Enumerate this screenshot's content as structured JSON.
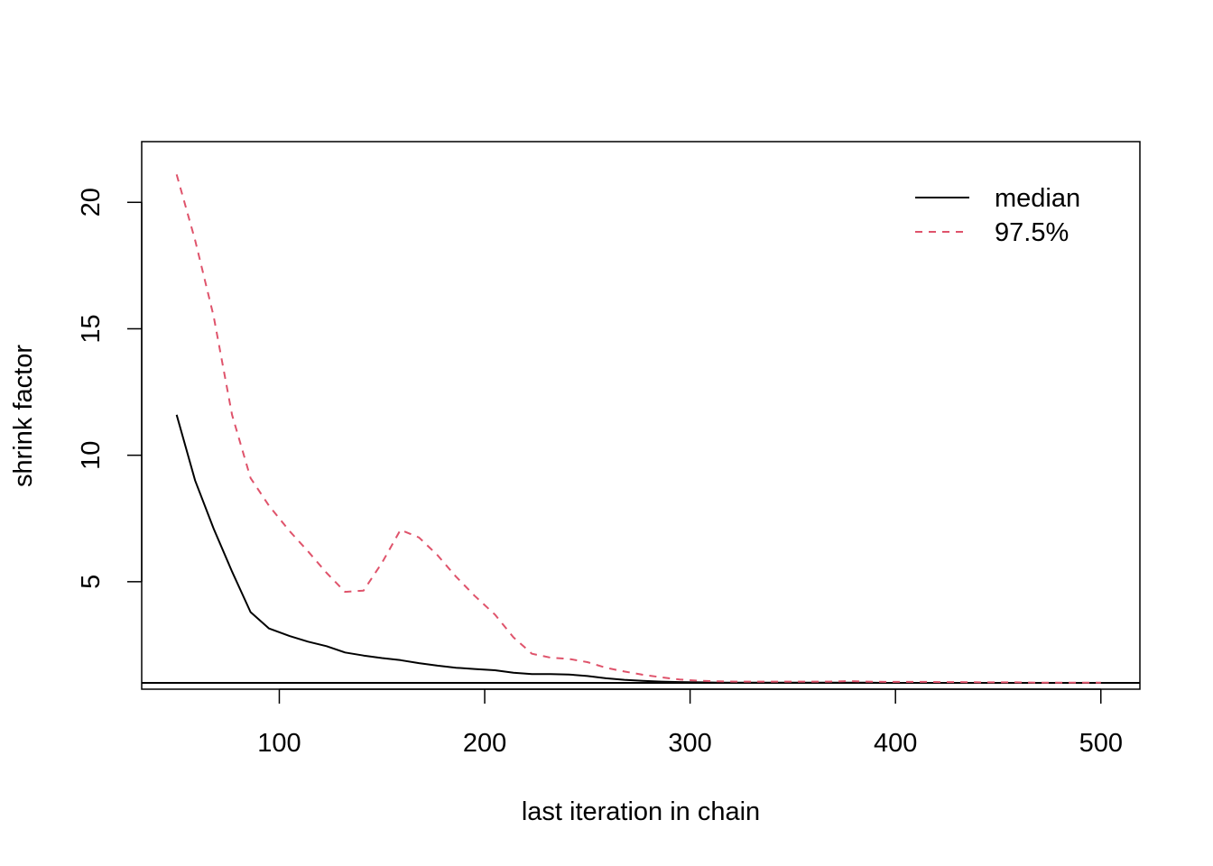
{
  "chart_data": {
    "type": "line",
    "title": "",
    "xlabel": "last iteration in chain",
    "ylabel": "shrink factor",
    "xlim": [
      33,
      519
    ],
    "ylim": [
      0.75,
      22.4
    ],
    "xticks": [
      100,
      200,
      300,
      400,
      500
    ],
    "yticks": [
      5,
      10,
      15,
      20
    ],
    "xtick_labels": [
      "100",
      "200",
      "300",
      "400",
      "500"
    ],
    "ytick_labels": [
      "5",
      "10",
      "15",
      "20"
    ],
    "reference_line": 1,
    "legend_position": "top-right",
    "grid": false,
    "series": [
      {
        "name": "median",
        "color": "#000000",
        "style": "solid",
        "x": [
          50,
          59,
          68,
          77,
          86,
          95,
          105,
          114,
          123,
          132,
          141,
          150,
          159,
          168,
          177,
          186,
          195,
          205,
          214,
          223,
          232,
          241,
          250,
          259,
          268,
          277,
          286,
          295,
          305,
          314,
          323,
          332,
          341,
          350,
          359,
          368,
          377,
          386,
          395,
          405,
          414,
          423,
          432,
          441,
          450,
          459,
          468,
          477,
          486,
          495,
          500
        ],
        "y": [
          11.6,
          9.0,
          7.1,
          5.4,
          3.8,
          3.15,
          2.85,
          2.63,
          2.45,
          2.2,
          2.08,
          1.98,
          1.9,
          1.78,
          1.68,
          1.6,
          1.55,
          1.5,
          1.4,
          1.35,
          1.35,
          1.33,
          1.27,
          1.18,
          1.12,
          1.08,
          1.05,
          1.03,
          1.02,
          1.01,
          1.01,
          1.01,
          1.01,
          1.01,
          1.01,
          1.01,
          1.01,
          1.01,
          1.0,
          1.0,
          1.0,
          1.0,
          1.0,
          1.0,
          1.0,
          1.0,
          1.0,
          1.0,
          1.0,
          1.0,
          1.0
        ]
      },
      {
        "name": "97.5%",
        "color": "#DF536B",
        "style": "dashed",
        "x": [
          50,
          59,
          68,
          77,
          86,
          95,
          105,
          114,
          123,
          132,
          141,
          150,
          159,
          168,
          177,
          186,
          195,
          205,
          214,
          223,
          232,
          241,
          250,
          259,
          268,
          277,
          286,
          295,
          305,
          314,
          323,
          332,
          341,
          350,
          359,
          368,
          377,
          386,
          395,
          405,
          414,
          423,
          432,
          441,
          450,
          459,
          468,
          477,
          486,
          495,
          500
        ],
        "y": [
          21.1,
          18.5,
          15.5,
          11.6,
          9.1,
          8.0,
          7.0,
          6.2,
          5.35,
          4.6,
          4.65,
          5.75,
          7.05,
          6.75,
          6.05,
          5.2,
          4.45,
          3.7,
          2.8,
          2.15,
          2.0,
          1.95,
          1.82,
          1.6,
          1.45,
          1.32,
          1.22,
          1.13,
          1.08,
          1.06,
          1.05,
          1.05,
          1.05,
          1.05,
          1.05,
          1.05,
          1.07,
          1.05,
          1.04,
          1.04,
          1.04,
          1.03,
          1.03,
          1.02,
          1.02,
          1.02,
          1.01,
          1.01,
          1.01,
          1.01,
          1.01
        ]
      }
    ]
  }
}
